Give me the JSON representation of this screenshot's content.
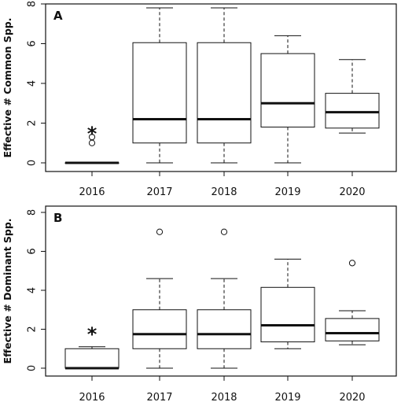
{
  "chart_data": [
    {
      "type": "boxplot",
      "panel_label": "A",
      "ylabel": "Effective # Common Spp.",
      "ylim": [
        0,
        8
      ],
      "yticks": [
        0,
        2,
        4,
        6,
        8
      ],
      "categories": [
        "2016",
        "2017",
        "2018",
        "2019",
        "2020"
      ],
      "boxes": [
        {
          "category": "2016",
          "min": 0,
          "q1": 0,
          "median": 0,
          "q3": 0,
          "max": 0,
          "outliers": [
            1.0,
            1.3
          ],
          "annotation": "*"
        },
        {
          "category": "2017",
          "min": 0,
          "q1": 1.0,
          "median": 2.2,
          "q3": 6.05,
          "max": 7.8,
          "outliers": []
        },
        {
          "category": "2018",
          "min": 0,
          "q1": 1.0,
          "median": 2.2,
          "q3": 6.05,
          "max": 7.8,
          "outliers": []
        },
        {
          "category": "2019",
          "min": 0,
          "q1": 1.8,
          "median": 3.0,
          "q3": 5.5,
          "max": 6.4,
          "outliers": []
        },
        {
          "category": "2020",
          "min": 1.5,
          "q1": 1.75,
          "median": 2.55,
          "q3": 3.5,
          "max": 5.2,
          "outliers": []
        }
      ]
    },
    {
      "type": "boxplot",
      "panel_label": "B",
      "ylabel": "Effective # Dominant Spp.",
      "ylim": [
        0,
        8
      ],
      "yticks": [
        0,
        2,
        4,
        6,
        8
      ],
      "categories": [
        "2016",
        "2017",
        "2018",
        "2019",
        "2020"
      ],
      "boxes": [
        {
          "category": "2016",
          "min": 0,
          "q1": 0,
          "median": 0,
          "q3": 1.0,
          "max": 1.1,
          "outliers": [],
          "annotation": "*"
        },
        {
          "category": "2017",
          "min": 0,
          "q1": 1.0,
          "median": 1.75,
          "q3": 3.0,
          "max": 4.6,
          "outliers": [
            7.0
          ]
        },
        {
          "category": "2018",
          "min": 0,
          "q1": 1.0,
          "median": 1.75,
          "q3": 3.0,
          "max": 4.6,
          "outliers": [
            7.0
          ]
        },
        {
          "category": "2019",
          "min": 1.0,
          "q1": 1.35,
          "median": 2.2,
          "q3": 4.15,
          "max": 5.6,
          "outliers": []
        },
        {
          "category": "2020",
          "min": 1.2,
          "q1": 1.4,
          "median": 1.8,
          "q3": 2.55,
          "max": 2.95,
          "outliers": [
            5.4
          ]
        }
      ]
    }
  ]
}
